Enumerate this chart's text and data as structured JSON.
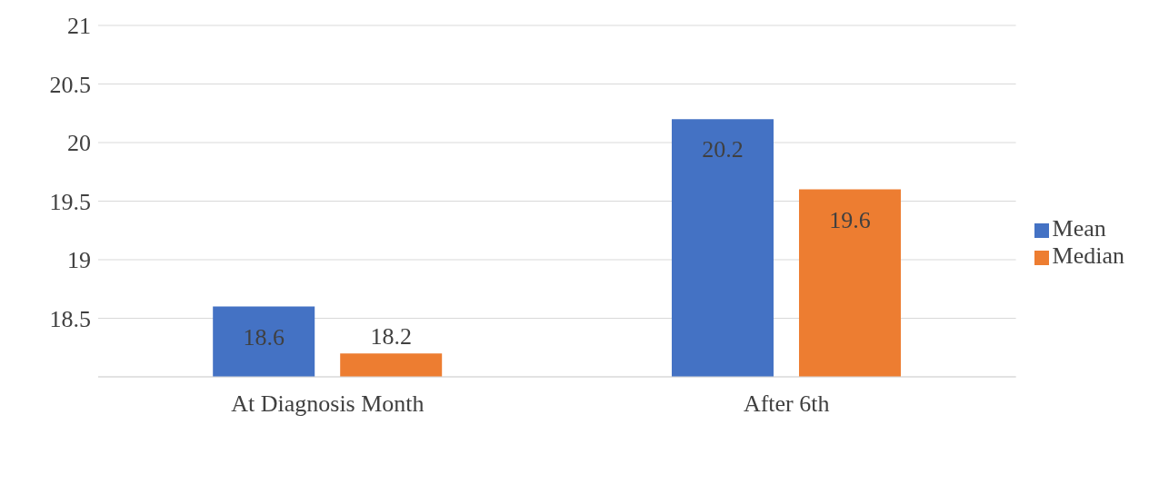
{
  "chart_data": {
    "type": "bar",
    "categories": [
      "At Diagnosis Month",
      "After 6th"
    ],
    "series": [
      {
        "name": "Mean",
        "color": "#4472c4",
        "values": [
          18.6,
          20.2
        ]
      },
      {
        "name": "Median",
        "color": "#ed7d31",
        "values": [
          18.2,
          19.6
        ]
      }
    ],
    "ylim": [
      18,
      21
    ],
    "yticks": [
      18.5,
      19,
      19.5,
      20,
      20.5,
      21
    ],
    "grid": "y",
    "legend": "right",
    "data_labels": true
  }
}
